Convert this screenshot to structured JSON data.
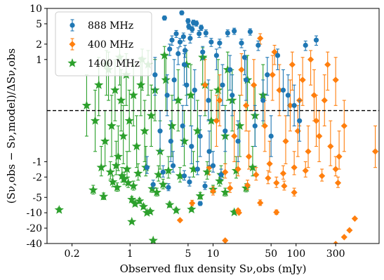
{
  "chart_data": {
    "type": "scatter",
    "xlabel": "Observed flux density Sν,obs (mJy)",
    "ylabel": "(Sν,obs − Sν,model)/ΔSν,obs",
    "x_scale": "log",
    "y_scale": "symlog",
    "symlog_linthresh": 1,
    "xlim": [
      0.1,
      1000
    ],
    "ylim": [
      -40,
      10
    ],
    "x_ticks": [
      {
        "value": 0.2,
        "label": "0.2"
      },
      {
        "value": 1,
        "label": "1"
      },
      {
        "value": 5,
        "label": "5"
      },
      {
        "value": 10,
        "label": "10"
      },
      {
        "value": 50,
        "label": "50"
      },
      {
        "value": 100,
        "label": "100"
      },
      {
        "value": 300,
        "label": "300"
      }
    ],
    "y_ticks": [
      {
        "value": 10,
        "label": "10"
      },
      {
        "value": 5,
        "label": "5"
      },
      {
        "value": 2,
        "label": "2"
      },
      {
        "value": 1,
        "label": "1"
      },
      {
        "value": -1,
        "label": "-1"
      },
      {
        "value": -2,
        "label": "-2"
      },
      {
        "value": -5,
        "label": "-5"
      },
      {
        "value": -10,
        "label": "-10"
      },
      {
        "value": -20,
        "label": "-20"
      },
      {
        "value": -40,
        "label": "-40"
      }
    ],
    "reference_line": {
      "y": 0,
      "style": "dashed"
    },
    "legend": {
      "position": "top-left",
      "entries": [
        "888 MHz",
        "400 MHz",
        "1400 MHz"
      ]
    },
    "series": [
      {
        "name": "888 MHz",
        "color": "#1f77b4",
        "marker": "circle",
        "points": [
          [
            2.6,
            6.5,
            0.6
          ],
          [
            4.2,
            8.2,
            0.7
          ],
          [
            5.0,
            5.7,
            0.6
          ],
          [
            5.8,
            5.3,
            0.6
          ],
          [
            6.3,
            5.1,
            0.6
          ],
          [
            3.2,
            2.4,
            0.5
          ],
          [
            3.6,
            3.2,
            0.5
          ],
          [
            4.0,
            2.2,
            0.4
          ],
          [
            4.4,
            2.8,
            0.5
          ],
          [
            5.3,
            2.6,
            0.5
          ],
          [
            5.1,
            4.4,
            0.5
          ],
          [
            5.6,
            3.9,
            0.5
          ],
          [
            6.8,
            3.2,
            0.5
          ],
          [
            7.2,
            4.2,
            0.5
          ],
          [
            8.2,
            3.3,
            0.5
          ],
          [
            9.5,
            2.2,
            0.4
          ],
          [
            12.0,
            2.1,
            0.4
          ],
          [
            15.0,
            3.3,
            0.5
          ],
          [
            18.0,
            3.6,
            0.5
          ],
          [
            22.0,
            2.1,
            0.4
          ],
          [
            28.0,
            3.5,
            0.5
          ],
          [
            35.0,
            1.9,
            0.4
          ],
          [
            60.0,
            1.2,
            0.4
          ],
          [
            130.0,
            1.9,
            0.4
          ],
          [
            175.0,
            2.4,
            0.5
          ],
          [
            3.0,
            1.6,
            0.4
          ],
          [
            3.8,
            1.3,
            0.4
          ],
          [
            4.6,
            1.5,
            0.4
          ],
          [
            7.5,
            1.4,
            0.4
          ],
          [
            11.0,
            1.2,
            0.4
          ],
          [
            2.0,
            0.7,
            0.4
          ],
          [
            2.8,
            0.3,
            0.4
          ],
          [
            3.4,
            0.6,
            0.4
          ],
          [
            4.8,
            0.5,
            0.4
          ],
          [
            6.0,
            0.4,
            0.4
          ],
          [
            8.8,
            0.2,
            0.4
          ],
          [
            13.0,
            0.5,
            0.4
          ],
          [
            17.0,
            0.3,
            0.4
          ],
          [
            25.0,
            0.6,
            0.4
          ],
          [
            40.0,
            0.2,
            0.4
          ],
          [
            70.0,
            0.4,
            0.4
          ],
          [
            95.0,
            0.1,
            0.4
          ],
          [
            2.3,
            -0.4,
            0.4
          ],
          [
            3.1,
            -0.6,
            0.4
          ],
          [
            4.3,
            -0.3,
            0.4
          ],
          [
            5.5,
            -0.7,
            0.4
          ],
          [
            7.0,
            -0.5,
            0.4
          ],
          [
            9.0,
            -0.8,
            0.4
          ],
          [
            14.0,
            -0.4,
            0.4
          ],
          [
            20.0,
            -0.6,
            0.4
          ],
          [
            32.0,
            -0.3,
            0.4
          ],
          [
            50.0,
            -0.5,
            0.4
          ],
          [
            1.6,
            -1.3,
            0.4
          ],
          [
            2.5,
            -1.6,
            0.4
          ],
          [
            3.3,
            -1.2,
            0.4
          ],
          [
            4.5,
            -1.9,
            0.4
          ],
          [
            6.5,
            -1.4,
            0.4
          ],
          [
            10.0,
            -1.2,
            0.4
          ],
          [
            2.9,
            -3.2,
            0.5
          ],
          [
            8.0,
            -3.0,
            0.5
          ],
          [
            1.9,
            -2.8,
            0.5
          ],
          [
            5.2,
            -2.5,
            0.5
          ],
          [
            12.5,
            -1.8,
            0.4
          ],
          [
            7.0,
            -6.6,
            0.6
          ],
          [
            4.5,
            0.9,
            0.4
          ],
          [
            16.0,
            0.8,
            0.4
          ],
          [
            24.0,
            1.1,
            0.4
          ],
          [
            45.0,
            0.7,
            0.4
          ],
          [
            80.0,
            0.3,
            0.4
          ],
          [
            110.0,
            -0.2,
            0.4
          ]
        ]
      },
      {
        "name": "400 MHz",
        "color": "#ff7f0e",
        "marker": "diamond",
        "points": [
          [
            37.0,
            2.6,
            0.6
          ],
          [
            55.0,
            1.4,
            0.5
          ],
          [
            90.0,
            0.9,
            0.5
          ],
          [
            150.0,
            1.0,
            0.5
          ],
          [
            300.0,
            0.6,
            0.5
          ],
          [
            12.0,
            0.2,
            0.5
          ],
          [
            18.0,
            -0.5,
            0.5
          ],
          [
            22.0,
            0.8,
            0.5
          ],
          [
            27.0,
            -0.9,
            0.5
          ],
          [
            31.0,
            0.5,
            0.5
          ],
          [
            42.0,
            -0.3,
            0.5
          ],
          [
            48.0,
            -1.1,
            0.5
          ],
          [
            63.0,
            0.4,
            0.5
          ],
          [
            75.0,
            -0.6,
            0.5
          ],
          [
            85.0,
            0.1,
            0.5
          ],
          [
            105.0,
            -0.4,
            0.5
          ],
          [
            120.0,
            0.6,
            0.5
          ],
          [
            140.0,
            -0.8,
            0.5
          ],
          [
            165.0,
            0.3,
            0.5
          ],
          [
            190.0,
            -0.5,
            0.5
          ],
          [
            220.0,
            0.2,
            0.5
          ],
          [
            260.0,
            -0.7,
            0.5
          ],
          [
            330.0,
            -0.9,
            0.5
          ],
          [
            380.0,
            -0.3,
            0.5
          ],
          [
            900.0,
            -0.8,
            0.5
          ],
          [
            9.0,
            -1.3,
            0.5
          ],
          [
            14.0,
            -1.6,
            0.5
          ],
          [
            20.0,
            -1.4,
            0.5
          ],
          [
            33.0,
            -1.8,
            0.5
          ],
          [
            46.0,
            -2.1,
            0.6
          ],
          [
            70.0,
            -1.7,
            0.5
          ],
          [
            95.0,
            -1.3,
            0.5
          ],
          [
            130.0,
            -1.5,
            0.5
          ],
          [
            205.0,
            -1.9,
            0.5
          ],
          [
            300.0,
            -1.4,
            0.5
          ],
          [
            5.6,
            -6.5,
            0.8
          ],
          [
            10.0,
            -3.8,
            0.7
          ],
          [
            16.0,
            -3.3,
            0.7
          ],
          [
            26.0,
            -2.9,
            0.6
          ],
          [
            58.0,
            -2.6,
            0.6
          ],
          [
            72.0,
            -3.0,
            0.6
          ],
          [
            95.0,
            -4.0,
            0.7
          ],
          [
            320.0,
            -2.6,
            0.6
          ],
          [
            37.0,
            -6.4,
            0.8
          ],
          [
            58.0,
            -9.8,
            1.0
          ],
          [
            4.0,
            -14.0,
            0
          ],
          [
            14.0,
            -35.0,
            0
          ],
          [
            20.0,
            -9.0,
            0
          ],
          [
            20.5,
            -10.0,
            0
          ],
          [
            300.0,
            -41.0,
            0
          ],
          [
            380.0,
            -30.0,
            0
          ],
          [
            510.0,
            -13.0,
            0
          ],
          [
            440.0,
            -22.0,
            0
          ],
          [
            8.0,
            0.5,
            0.5
          ],
          [
            11.0,
            -0.2,
            0.5
          ],
          [
            25.0,
            0.1,
            0.5
          ],
          [
            52.0,
            0.7,
            0.5
          ],
          [
            110.0,
            0.2,
            0.5
          ],
          [
            175.0,
            -0.2,
            0.5
          ],
          [
            240.0,
            0.9,
            0.5
          ]
        ]
      },
      {
        "name": "1400 MHz",
        "color": "#2ca02c",
        "marker": "star",
        "points": [
          [
            0.14,
            -8.8,
            0.8
          ],
          [
            0.36,
            -3.6,
            0.7
          ],
          [
            0.48,
            -4.8,
            0.7
          ],
          [
            0.62,
            -2.5,
            0.6
          ],
          [
            0.7,
            -3.2,
            0.6
          ],
          [
            0.85,
            -2.2,
            0.6
          ],
          [
            1.05,
            -5.5,
            0.7
          ],
          [
            1.15,
            -6.7,
            0.7
          ],
          [
            1.3,
            -5.9,
            0.7
          ],
          [
            1.45,
            -7.6,
            0.8
          ],
          [
            1.6,
            -10.0,
            0.9
          ],
          [
            1.75,
            -9.5,
            0.9
          ],
          [
            1.85,
            -3.4,
            0.6
          ],
          [
            2.1,
            -4.0,
            0.7
          ],
          [
            2.5,
            -2.8,
            0.6
          ],
          [
            3.0,
            -7.0,
            0.8
          ],
          [
            3.6,
            -9.0,
            0.9
          ],
          [
            5.5,
            -8.6,
            0.8
          ],
          [
            7.0,
            -4.7,
            0.7
          ],
          [
            10.0,
            -3.5,
            0.6
          ],
          [
            12.0,
            -2.4,
            0.6
          ],
          [
            14.0,
            -4.0,
            0.7
          ],
          [
            18.0,
            -9.8,
            0.9
          ],
          [
            25.0,
            -3.3,
            0.6
          ],
          [
            1.05,
            -15.0,
            0
          ],
          [
            1.9,
            -35.0,
            0
          ],
          [
            1.1,
            -3.0,
            0.6
          ],
          [
            0.95,
            -2.6,
            0.6
          ],
          [
            0.3,
            0.1,
            0.6
          ],
          [
            0.38,
            -0.2,
            0.6
          ],
          [
            0.42,
            0.5,
            0.6
          ],
          [
            0.5,
            -0.6,
            0.6
          ],
          [
            0.55,
            0.8,
            0.6
          ],
          [
            0.6,
            -0.3,
            0.6
          ],
          [
            0.66,
            0.4,
            0.6
          ],
          [
            0.72,
            -0.9,
            0.6
          ],
          [
            0.78,
            0.2,
            0.6
          ],
          [
            0.83,
            -0.5,
            0.6
          ],
          [
            0.9,
            0.7,
            0.6
          ],
          [
            0.98,
            -0.2,
            0.6
          ],
          [
            1.1,
            0.3,
            0.6
          ],
          [
            1.2,
            -0.7,
            0.6
          ],
          [
            1.35,
            0.5,
            0.6
          ],
          [
            1.5,
            -0.4,
            0.6
          ],
          [
            1.65,
            0.9,
            0.6
          ],
          [
            1.8,
            -0.1,
            0.6
          ],
          [
            2.0,
            0.4,
            0.6
          ],
          [
            2.3,
            -0.8,
            0.6
          ],
          [
            2.7,
            0.6,
            0.6
          ],
          [
            3.2,
            -0.3,
            0.6
          ],
          [
            3.8,
            0.2,
            0.6
          ],
          [
            4.5,
            -0.6,
            0.6
          ],
          [
            5.4,
            0.3,
            0.6
          ],
          [
            6.5,
            -0.4,
            0.6
          ],
          [
            8.0,
            0.5,
            0.6
          ],
          [
            9.5,
            -0.2,
            0.6
          ],
          [
            11.5,
            0.4,
            0.6
          ],
          [
            14.0,
            -0.5,
            0.6
          ],
          [
            17.0,
            0.2,
            0.6
          ],
          [
            21.0,
            -0.3,
            0.6
          ],
          [
            26.0,
            0.6,
            0.6
          ],
          [
            32.0,
            -0.1,
            0.6
          ],
          [
            40.0,
            0.3,
            0.6
          ],
          [
            0.45,
            -1.3,
            0.6
          ],
          [
            0.58,
            -1.6,
            0.6
          ],
          [
            0.68,
            -1.2,
            0.6
          ],
          [
            0.8,
            -1.9,
            0.6
          ],
          [
            0.92,
            -1.4,
            0.6
          ],
          [
            1.25,
            -1.7,
            0.6
          ],
          [
            1.55,
            -1.3,
            0.6
          ],
          [
            2.2,
            -1.8,
            0.6
          ],
          [
            2.9,
            -1.5,
            0.6
          ],
          [
            4.0,
            -1.9,
            0.6
          ],
          [
            5.8,
            -1.4,
            0.6
          ],
          [
            8.5,
            -1.6,
            0.6
          ],
          [
            12.5,
            -1.8,
            0.6
          ],
          [
            19.0,
            -1.5,
            0.6
          ],
          [
            30.0,
            -1.3,
            0.6
          ],
          [
            0.52,
            0.9,
            0.6
          ],
          [
            0.75,
            1.1,
            0.6
          ],
          [
            1.4,
            1.0,
            0.6
          ],
          [
            2.6,
            1.2,
            0.6
          ],
          [
            4.8,
            0.9,
            0.6
          ],
          [
            7.5,
            1.1,
            0.6
          ],
          [
            15.0,
            0.8,
            0.6
          ]
        ]
      }
    ]
  }
}
